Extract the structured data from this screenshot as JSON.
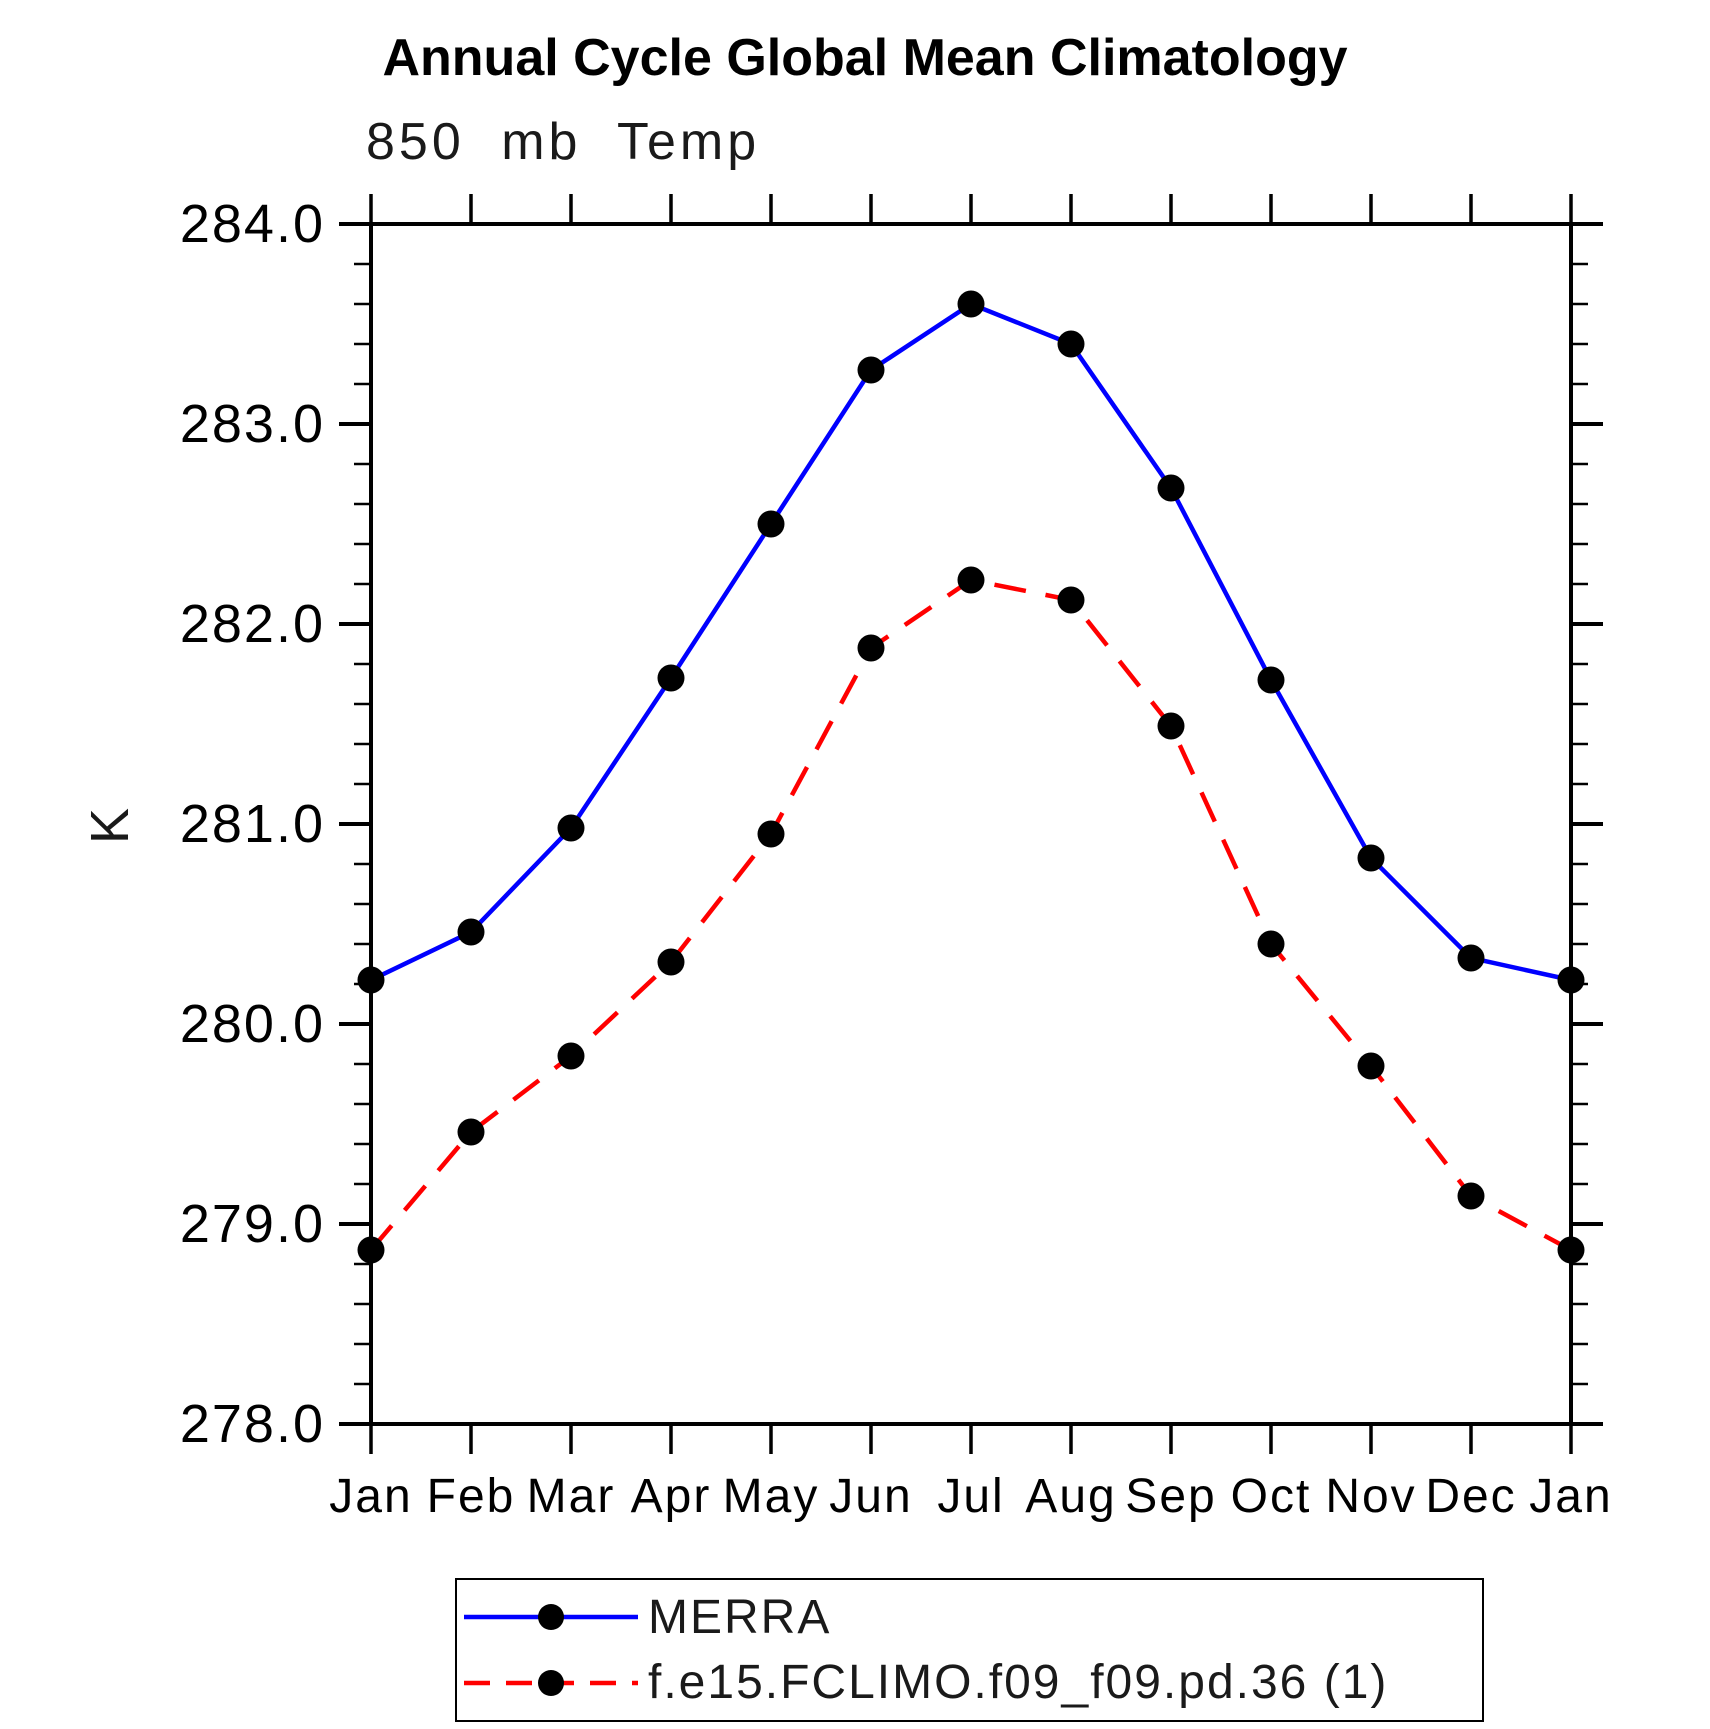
{
  "page": {
    "background_color": "#ffffff"
  },
  "chart_data": {
    "type": "line",
    "title": "Annual Cycle Global Mean Climatology",
    "subtitle": "850 mb Temp",
    "ylabel": "K",
    "xlabel": "",
    "x_categories": [
      "Jan",
      "Feb",
      "Mar",
      "Apr",
      "May",
      "Jun",
      "Jul",
      "Aug",
      "Sep",
      "Oct",
      "Nov",
      "Dec",
      "Jan"
    ],
    "ylim": [
      278.0,
      284.0
    ],
    "ytick_major_step": 1.0,
    "ytick_minor_step": 0.2,
    "ytick_labels": [
      "278.0",
      "279.0",
      "280.0",
      "281.0",
      "282.0",
      "283.0",
      "284.0"
    ],
    "grid": "off",
    "tick_style": "outward-all-sides",
    "legend_position": "bottom",
    "axis_color": "#000000",
    "series": [
      {
        "name": "MERRA",
        "color": "#0000ff",
        "style": "solid",
        "marker": "circle",
        "marker_color": "#000000",
        "values": [
          280.22,
          280.46,
          280.98,
          281.73,
          282.5,
          283.27,
          283.6,
          283.4,
          282.68,
          281.72,
          280.83,
          280.33,
          280.22
        ]
      },
      {
        "name": "f.e15.FCLIMO.f09_f09.pd.36 (1)",
        "color": "#ff0000",
        "style": "dashed",
        "marker": "circle",
        "marker_color": "#000000",
        "values": [
          278.87,
          279.46,
          279.84,
          280.31,
          280.95,
          281.88,
          282.22,
          282.12,
          281.49,
          280.4,
          279.79,
          279.14,
          278.87
        ]
      }
    ]
  }
}
